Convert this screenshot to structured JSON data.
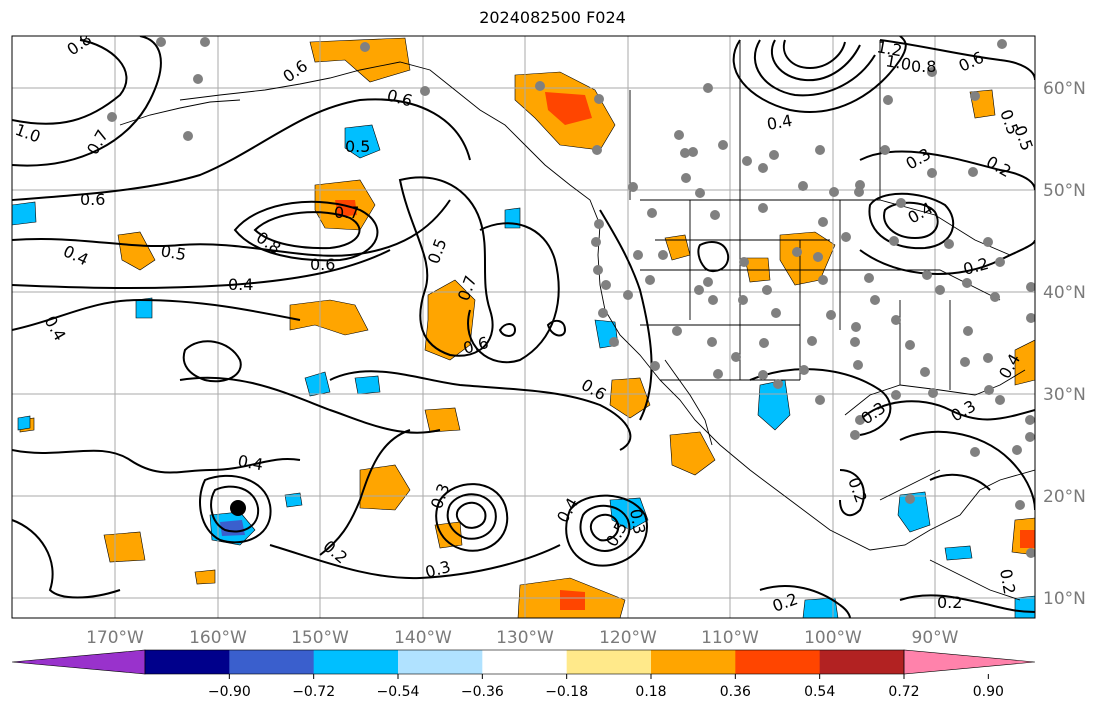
{
  "title": "2024082500 F024",
  "lon_ticks": [
    "170°W",
    "160°W",
    "150°W",
    "140°W",
    "130°W",
    "120°W",
    "110°W",
    "100°W",
    "90°W"
  ],
  "lat_ticks": [
    "60°N",
    "50°N",
    "40°N",
    "30°N",
    "20°N",
    "10°N"
  ],
  "colorbar": {
    "colors": [
      "#9932cc",
      "#00008b",
      "#3a5fcd",
      "#00bfff",
      "#b0e2ff",
      "#ffffff",
      "#ffe98a",
      "#ffa500",
      "#ff4500",
      "#b22222",
      "#ff82ab"
    ],
    "tick_labels": [
      "−0.90",
      "−0.72",
      "−0.54",
      "−0.36",
      "−0.18",
      "0.18",
      "0.36",
      "0.54",
      "0.72",
      "0.90"
    ]
  },
  "contour_labels": [
    "0.8",
    "1.0",
    "0.7",
    "0.6",
    "0.4",
    "0.5",
    "0.4",
    "0.6",
    "0.5",
    "0.7",
    "0.8",
    "0.6",
    "0.4",
    "0.5",
    "0.7",
    "0.6",
    "0.6",
    "0.4",
    "0.2",
    "0.3",
    "0.3",
    "0.3",
    "0.4",
    "0.5",
    "1.2",
    "1.0",
    "0.8",
    "0.6",
    "0.4",
    "0.5",
    "0.3",
    "0.2",
    "0.5",
    "0.4",
    "0.2",
    "0.3",
    "0.3",
    "0.2",
    "0.2",
    "0.2",
    "0.2",
    "0.6",
    "0.4"
  ],
  "colors": {
    "station_dot": "#808080",
    "grid": "#aaaaaa",
    "contour": "#000000",
    "tick_text": "#7a7a7a"
  }
}
